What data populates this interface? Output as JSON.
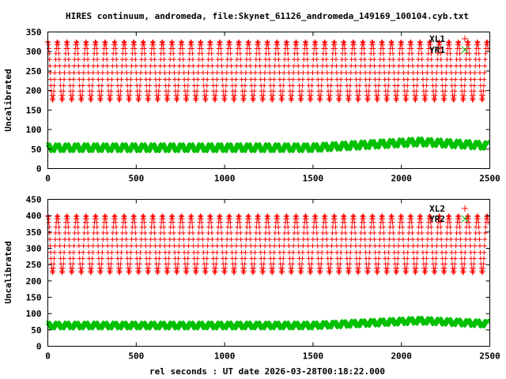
{
  "chart_data": {
    "type": "scatter",
    "title": "HIRES continuum, andromeda, file:Skynet_61126_andromeda_149169_100104.cyb.txt",
    "xlabel": "rel seconds : UT date 2026-03-28T00:18:22.000",
    "panels": [
      {
        "ylabel": "Uncalibrated",
        "xlim": [
          0,
          2500
        ],
        "ylim": [
          0,
          350
        ],
        "xticks": [
          0,
          500,
          1000,
          1500,
          2000,
          2500
        ],
        "yticks": [
          0,
          50,
          100,
          150,
          200,
          250,
          300,
          350
        ],
        "legend_position": "top-right",
        "series": [
          {
            "name": "XL1",
            "marker": "plus",
            "color": "#ff0000",
            "oscillation": {
              "period": 54,
              "x_start": 0,
              "x_end": 2490,
              "min": 175,
              "max": 325
            }
          },
          {
            "name": "YR1",
            "marker": "cross",
            "color": "#00c000",
            "oscillation": {
              "period": 54,
              "x_start": 0,
              "x_end": 2490,
              "min": 45,
              "max": 62
            },
            "drift": [
              [
                0,
                0
              ],
              [
                1500,
                0
              ],
              [
                2100,
                15
              ],
              [
                2500,
                5
              ]
            ]
          }
        ]
      },
      {
        "ylabel": "Uncalibrated",
        "xlim": [
          0,
          2500
        ],
        "ylim": [
          0,
          450
        ],
        "xticks": [
          0,
          500,
          1000,
          1500,
          2000,
          2500
        ],
        "yticks": [
          0,
          50,
          100,
          150,
          200,
          250,
          300,
          350,
          400,
          450
        ],
        "legend_position": "top-right",
        "series": [
          {
            "name": "XL2",
            "marker": "plus",
            "color": "#ff0000",
            "oscillation": {
              "period": 54,
              "x_start": 0,
              "x_end": 2490,
              "min": 225,
              "max": 400
            }
          },
          {
            "name": "YR2",
            "marker": "cross",
            "color": "#00c000",
            "oscillation": {
              "period": 54,
              "x_start": 0,
              "x_end": 2490,
              "min": 55,
              "max": 72
            },
            "drift": [
              [
                0,
                0
              ],
              [
                1500,
                0
              ],
              [
                2100,
                15
              ],
              [
                2500,
                5
              ]
            ]
          }
        ]
      }
    ]
  }
}
